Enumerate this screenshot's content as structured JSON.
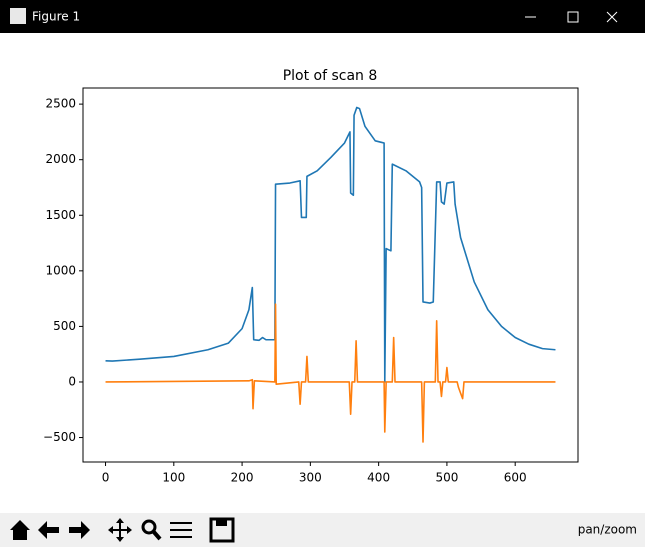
{
  "window": {
    "title": "Figure 1",
    "status": "pan/zoom"
  },
  "chart_data": {
    "type": "line",
    "title": "Plot of scan 8",
    "series": [
      {
        "color": "#1f77b4",
        "x": [
          0,
          10,
          50,
          100,
          150,
          180,
          200,
          210,
          215,
          217,
          225,
          230,
          235,
          248,
          249,
          270,
          285,
          287,
          294,
          295,
          310,
          330,
          350,
          358,
          359,
          363,
          364,
          368,
          372,
          380,
          395,
          408,
          409,
          411,
          418,
          420,
          440,
          460,
          463,
          465,
          475,
          480,
          485,
          490,
          492,
          496,
          500,
          510,
          512,
          520,
          540,
          560,
          580,
          600,
          620,
          640,
          659
        ],
        "values": [
          190,
          188,
          205,
          230,
          290,
          350,
          480,
          650,
          850,
          380,
          375,
          400,
          380,
          380,
          1780,
          1790,
          1810,
          1480,
          1480,
          1850,
          1900,
          2020,
          2150,
          2250,
          1700,
          1680,
          2400,
          2470,
          2460,
          2300,
          2170,
          2150,
          0,
          1200,
          1180,
          1960,
          1900,
          1800,
          1750,
          720,
          710,
          720,
          1800,
          1800,
          1620,
          1600,
          1790,
          1800,
          1600,
          1300,
          900,
          650,
          500,
          400,
          340,
          300,
          290
        ]
      },
      {
        "color": "#ff7f0e",
        "x": [
          0,
          210,
          215,
          216,
          218,
          248,
          249,
          250,
          283,
          285,
          287,
          293,
          295,
          297,
          357,
          359,
          361,
          365,
          367,
          369,
          408,
          409,
          411,
          420,
          422,
          424,
          463,
          465,
          467,
          483,
          485,
          487,
          490,
          492,
          494,
          498,
          500,
          502,
          515,
          517,
          520,
          523,
          525,
          659
        ],
        "values": [
          0,
          10,
          20,
          -240,
          10,
          0,
          700,
          -20,
          0,
          -200,
          0,
          0,
          230,
          0,
          0,
          -290,
          0,
          0,
          370,
          0,
          0,
          -450,
          0,
          0,
          400,
          0,
          0,
          -540,
          0,
          0,
          550,
          0,
          0,
          -130,
          0,
          0,
          130,
          0,
          0,
          -50,
          -100,
          -150,
          0,
          0
        ]
      }
    ],
    "xlim": [
      -33,
      692
    ],
    "ylim": [
      -720,
      2645
    ],
    "xticks": [
      0,
      100,
      200,
      300,
      400,
      500,
      600
    ],
    "yticks": [
      {
        "value": -500,
        "label": "−500"
      },
      0,
      500,
      1000,
      1500,
      2000,
      2500
    ]
  }
}
